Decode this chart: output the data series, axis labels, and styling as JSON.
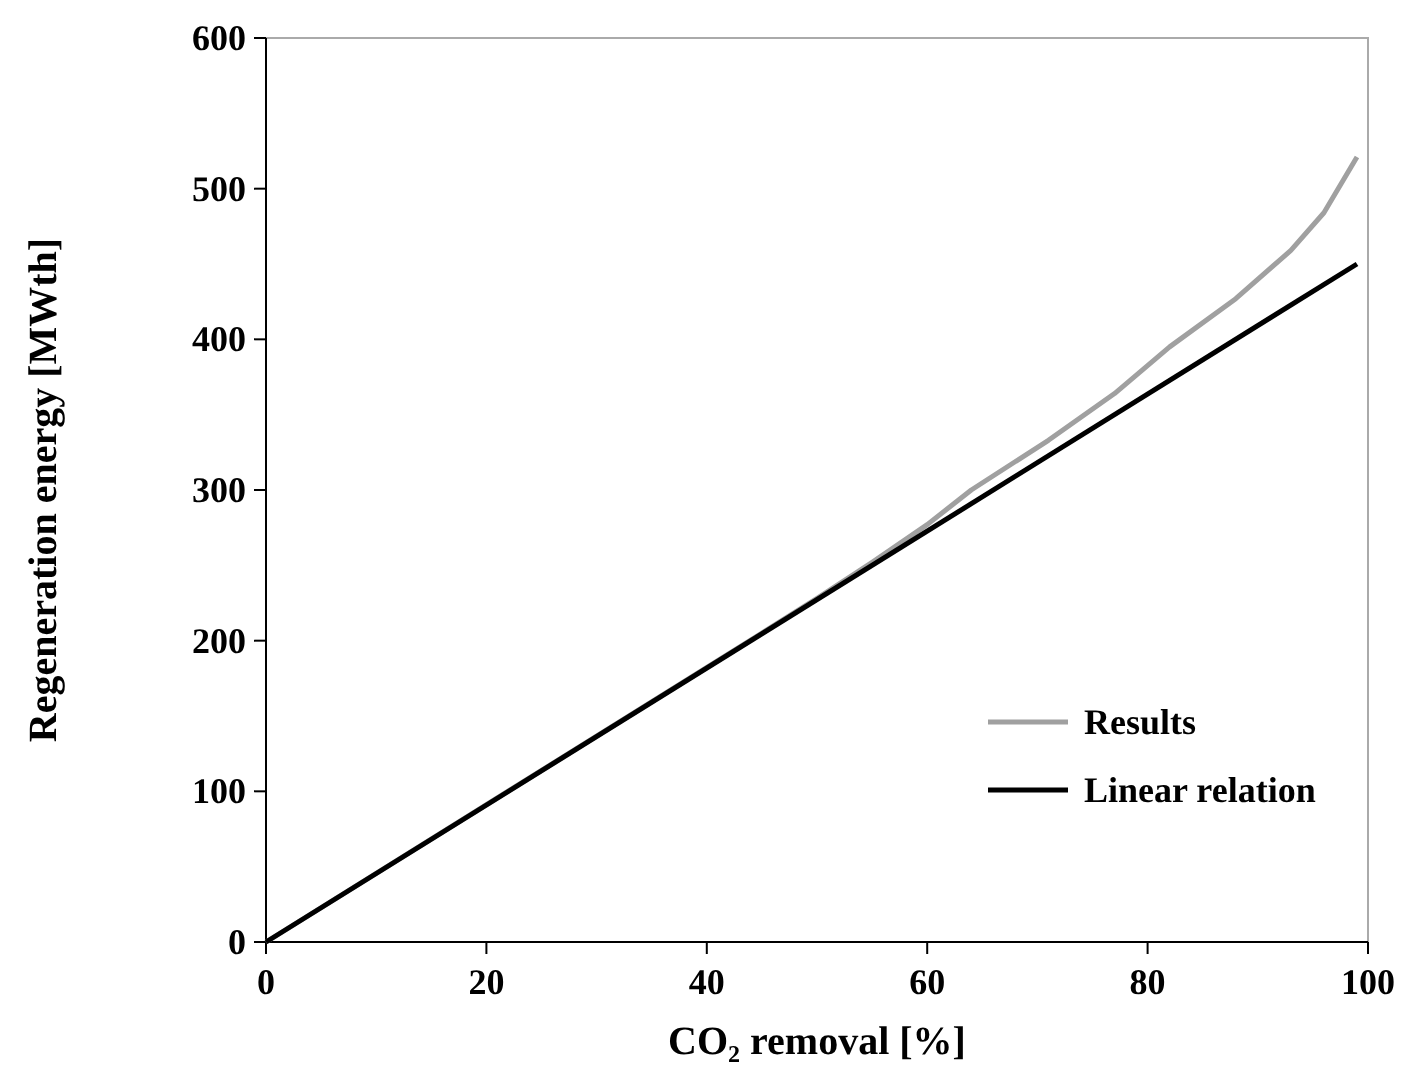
{
  "chart_data": {
    "type": "line",
    "xlabel": "CO₂ removal [%]",
    "ylabel": "Regeneration energy [MWth]",
    "xlim": [
      0,
      100
    ],
    "ylim": [
      0,
      600
    ],
    "xticks": [
      0,
      20,
      40,
      60,
      80,
      100
    ],
    "yticks": [
      0,
      100,
      200,
      300,
      400,
      500,
      600
    ],
    "grid": false,
    "legend": "bottom right",
    "marker": "none",
    "line_style": "solid",
    "series": [
      {
        "name": "Results",
        "color": "#a0a0a0",
        "x": [
          0,
          45,
          50,
          55,
          60,
          64,
          71,
          77,
          82,
          88,
          93,
          96,
          99
        ],
        "values": [
          0,
          205,
          228,
          252,
          277,
          300,
          333,
          364,
          395,
          427,
          459,
          484,
          521
        ]
      },
      {
        "name": "Linear relation",
        "color": "#000000",
        "x": [
          0,
          99
        ],
        "values": [
          0,
          450
        ]
      }
    ]
  }
}
